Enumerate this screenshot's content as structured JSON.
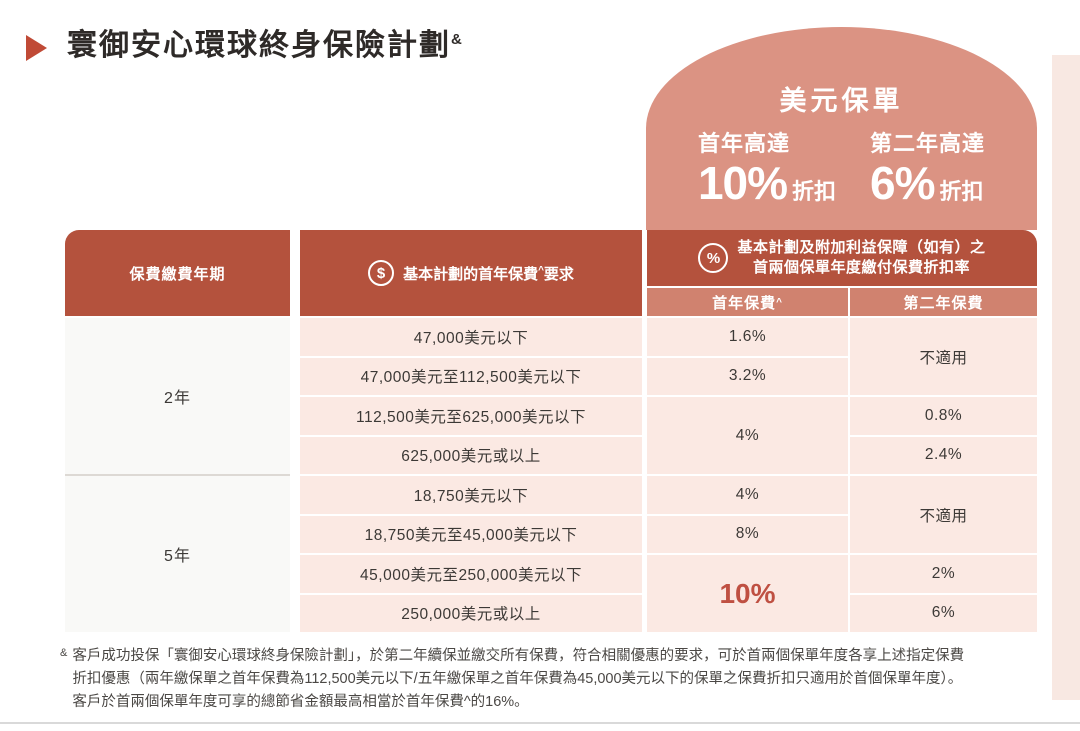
{
  "page": {
    "title": "寰御安心環球終身保險計劃",
    "title_sup": "&"
  },
  "badge": {
    "title": "美元保單",
    "offers": [
      {
        "label": "首年高達",
        "value": "10%",
        "suffix": "折扣"
      },
      {
        "label": "第二年高達",
        "value": "6%",
        "suffix": "折扣"
      }
    ]
  },
  "table": {
    "header": {
      "period": "保費繳費年期",
      "dollar_icon": "$",
      "premium_req": "基本計劃的首年保費",
      "premium_req_sup": "^",
      "premium_req_suffix": "要求",
      "percent_icon": "%",
      "discount_line1": "基本計劃及附加利益保障（如有）之",
      "discount_line2": "首兩個保單年度繳付保費折扣率",
      "subcol_first_year": "首年保費",
      "subcol_first_year_sup": "^",
      "subcol_second_year": "第二年保費"
    },
    "body": {
      "period_2yr": "2年",
      "period_5yr": "5年",
      "tier1": "47,000美元以下",
      "tier2": "47,000美元至112,500美元以下",
      "tier3": "112,500美元至625,000美元以下",
      "tier4": "625,000美元或以上",
      "tier5": "18,750美元以下",
      "tier6": "18,750美元至45,000美元以下",
      "tier7": "45,000美元至250,000美元以下",
      "tier8": "250,000美元或以上",
      "fy_tier1": "1.6%",
      "fy_tier2": "3.2%",
      "fy_tier3_4": "4%",
      "fy_tier5": "4%",
      "fy_tier6": "8%",
      "fy_tier7_8": "10%",
      "sy_tier1_2": "不適用",
      "sy_tier3": "0.8%",
      "sy_tier4": "2.4%",
      "sy_tier5_6": "不適用",
      "sy_tier7": "2%",
      "sy_tier8": "6%"
    }
  },
  "footnote": {
    "marker": "&",
    "lines": [
      "客戶成功投保「寰御安心環球終身保險計劃」，於第二年續保並繳交所有保費，符合相關優惠的要求，可於首兩個保單年度各享上述指定保費",
      "折扣優惠（兩年繳保單之首年保費為112,500美元以下/五年繳保單之首年保費為45,000美元以下的保單之保費折扣只適用於首個保單年度）。",
      "客戶於首兩個保單年度可享的總節省金額最高相當於首年保費^的16%。"
    ]
  },
  "colors": {
    "header_red": "#b4523d",
    "badge_salmon": "#db9383",
    "subheader_salmon": "#d0826f",
    "row_pink": "#fbe9e3",
    "period_cell_white": "#f9f9f7",
    "discount_accent_red": "#bf5042",
    "bullet_red": "#c04a36",
    "strip_pink": "#f8e8e2"
  }
}
